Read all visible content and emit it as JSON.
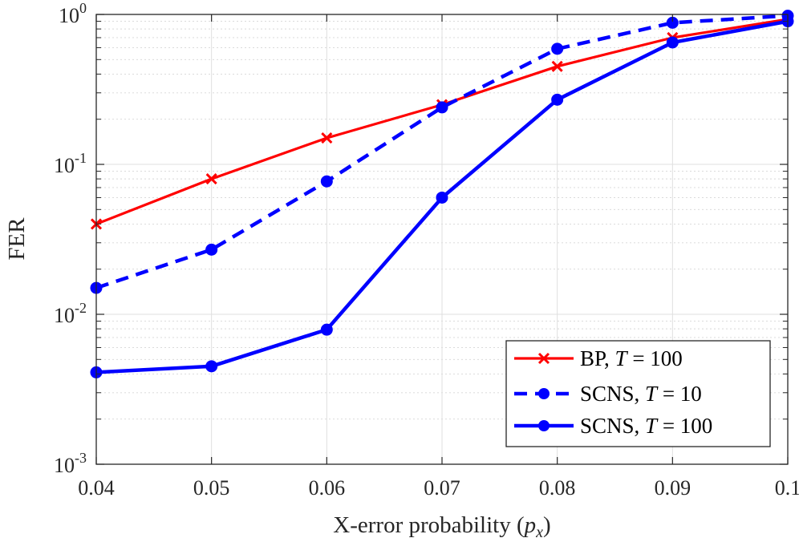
{
  "chart_data": {
    "type": "line",
    "title": "",
    "xlabel": "X-error probability (",
    "xlabel_var": "p",
    "xlabel_sub": "x",
    "xlabel_close": ")",
    "ylabel": "FER",
    "yscale": "log",
    "xlim": [
      0.04,
      0.1
    ],
    "ylim": [
      0.001,
      1
    ],
    "grid": true,
    "x": [
      0.04,
      0.05,
      0.06,
      0.07,
      0.08,
      0.09,
      0.1
    ],
    "xtick_labels": [
      "0.04",
      "0.05",
      "0.06",
      "0.07",
      "0.08",
      "0.09",
      "0.1"
    ],
    "yticks": [
      {
        "value": 1,
        "base": "10",
        "exp": "0"
      },
      {
        "value": 0.1,
        "base": "10",
        "exp": "-1"
      },
      {
        "value": 0.01,
        "base": "10",
        "exp": "-2"
      },
      {
        "value": 0.001,
        "base": "10",
        "exp": "-3"
      }
    ],
    "legend_position": "bottom-right",
    "series": [
      {
        "name": "BP, T = 100",
        "label_main": "BP, ",
        "label_var": "T",
        "label_rest": " = 100",
        "color": "#ff0000",
        "line": "solid",
        "marker": "x",
        "values": [
          0.04,
          0.08,
          0.15,
          0.25,
          0.45,
          0.7,
          0.93
        ]
      },
      {
        "name": "SCNS, T = 10",
        "label_main": "SCNS, ",
        "label_var": "T",
        "label_rest": " = 10",
        "color": "#0000ff",
        "line": "dashed",
        "marker": "o",
        "values": [
          0.015,
          0.027,
          0.077,
          0.24,
          0.59,
          0.88,
          0.98
        ]
      },
      {
        "name": "SCNS, T = 100",
        "label_main": "SCNS, ",
        "label_var": "T",
        "label_rest": " = 100",
        "color": "#0000ff",
        "line": "solid",
        "marker": "o",
        "values": [
          0.0041,
          0.0045,
          0.0079,
          0.06,
          0.27,
          0.65,
          0.9
        ]
      }
    ]
  }
}
